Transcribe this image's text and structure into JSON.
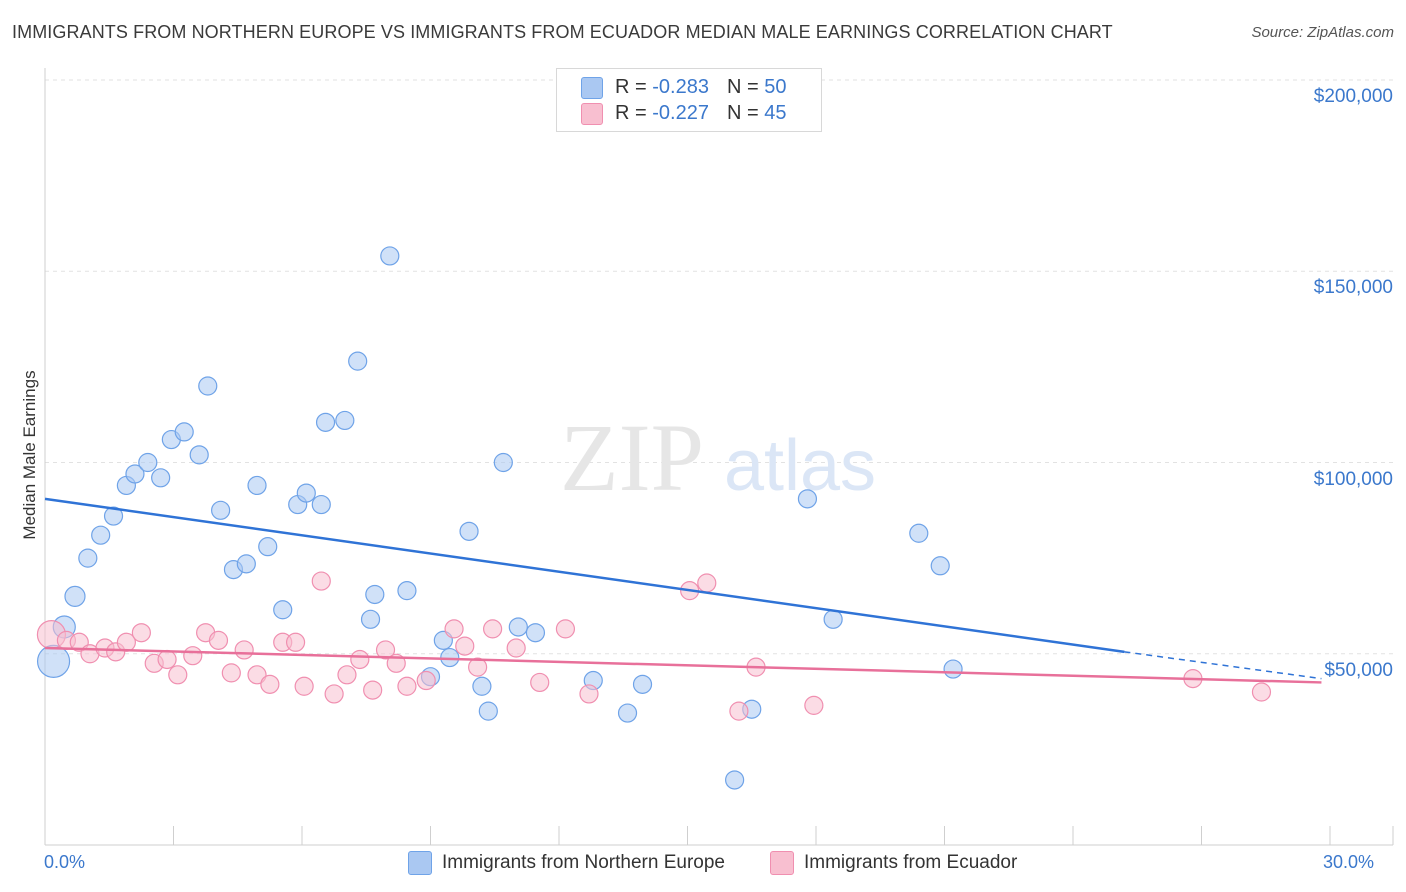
{
  "header": {
    "title": "IMMIGRANTS FROM NORTHERN EUROPE VS IMMIGRANTS FROM ECUADOR MEDIAN MALE EARNINGS CORRELATION CHART",
    "source": "Source: ZipAtlas.com"
  },
  "watermark": {
    "zip": "ZIP",
    "atlas": "atlas"
  },
  "legend": {
    "rows": [
      {
        "r_label": "R = ",
        "r_value": "-0.283",
        "n_label": "N = ",
        "n_value": "50",
        "color": "#aac8f2"
      },
      {
        "r_label": "R = ",
        "r_value": "-0.227",
        "n_label": "N = ",
        "n_value": "45",
        "color": "#f8bfd0"
      }
    ]
  },
  "bottom_legend": {
    "items": [
      {
        "label": "Immigrants from Northern Europe",
        "color": "#aac8f2"
      },
      {
        "label": "Immigrants from Ecuador",
        "color": "#f8bfd0"
      }
    ]
  },
  "chart_data": {
    "type": "scatter",
    "title": "IMMIGRANTS FROM NORTHERN EUROPE VS IMMIGRANTS FROM ECUADOR MEDIAN MALE EARNINGS CORRELATION CHART",
    "xlabel": "",
    "ylabel": "Median Male Earnings",
    "xlim": [
      0,
      30
    ],
    "ylim": [
      0,
      210000
    ],
    "x_tick_labels": [
      "0.0%",
      "30.0%"
    ],
    "y_ticks": [
      50000,
      100000,
      150000,
      200000
    ],
    "y_tick_labels": [
      "$50,000",
      "$100,000",
      "$150,000",
      "$200,000"
    ],
    "grid": true,
    "legend_position": "top-center",
    "series": [
      {
        "name": "Immigrants from Northern Europe",
        "color": "#6fa3e8",
        "fill": "#aac8f2",
        "trend": {
          "x": [
            0,
            25.2
          ],
          "y": [
            90500,
            50500
          ],
          "color": "#2f73d6",
          "dashed_extension_to_x": 29.8,
          "dashed_extension_y": 43500
        },
        "points": [
          {
            "x": 0.2,
            "y": 48000,
            "size": 16
          },
          {
            "x": 0.45,
            "y": 57000,
            "size": 11
          },
          {
            "x": 0.7,
            "y": 65000,
            "size": 10
          },
          {
            "x": 1.0,
            "y": 75000,
            "size": 9
          },
          {
            "x": 1.3,
            "y": 81000,
            "size": 9
          },
          {
            "x": 1.6,
            "y": 86000,
            "size": 9
          },
          {
            "x": 1.9,
            "y": 94000,
            "size": 9
          },
          {
            "x": 2.1,
            "y": 97000,
            "size": 9
          },
          {
            "x": 2.4,
            "y": 100000,
            "size": 9
          },
          {
            "x": 2.7,
            "y": 96000,
            "size": 9
          },
          {
            "x": 2.95,
            "y": 106000,
            "size": 9
          },
          {
            "x": 3.25,
            "y": 108000,
            "size": 9
          },
          {
            "x": 3.6,
            "y": 102000,
            "size": 9
          },
          {
            "x": 3.8,
            "y": 120000,
            "size": 9
          },
          {
            "x": 4.1,
            "y": 87500,
            "size": 9
          },
          {
            "x": 4.4,
            "y": 72000,
            "size": 9
          },
          {
            "x": 4.7,
            "y": 73500,
            "size": 9
          },
          {
            "x": 4.95,
            "y": 94000,
            "size": 9
          },
          {
            "x": 5.2,
            "y": 78000,
            "size": 9
          },
          {
            "x": 5.55,
            "y": 61500,
            "size": 9
          },
          {
            "x": 5.9,
            "y": 89000,
            "size": 9
          },
          {
            "x": 6.1,
            "y": 92000,
            "size": 9
          },
          {
            "x": 6.45,
            "y": 89000,
            "size": 9
          },
          {
            "x": 6.55,
            "y": 110500,
            "size": 9
          },
          {
            "x": 7.0,
            "y": 111000,
            "size": 9
          },
          {
            "x": 7.3,
            "y": 126500,
            "size": 9
          },
          {
            "x": 7.6,
            "y": 59000,
            "size": 9
          },
          {
            "x": 7.7,
            "y": 65500,
            "size": 9
          },
          {
            "x": 8.05,
            "y": 154000,
            "size": 9
          },
          {
            "x": 8.45,
            "y": 66500,
            "size": 9
          },
          {
            "x": 9.0,
            "y": 44000,
            "size": 9
          },
          {
            "x": 9.3,
            "y": 53500,
            "size": 9
          },
          {
            "x": 9.45,
            "y": 49000,
            "size": 9
          },
          {
            "x": 9.9,
            "y": 82000,
            "size": 9
          },
          {
            "x": 10.2,
            "y": 41500,
            "size": 9
          },
          {
            "x": 10.35,
            "y": 35000,
            "size": 9
          },
          {
            "x": 10.7,
            "y": 100000,
            "size": 9
          },
          {
            "x": 11.05,
            "y": 57000,
            "size": 9
          },
          {
            "x": 11.45,
            "y": 55500,
            "size": 9
          },
          {
            "x": 12.45,
            "y": 196000,
            "size": 9
          },
          {
            "x": 12.8,
            "y": 43000,
            "size": 9
          },
          {
            "x": 13.6,
            "y": 34500,
            "size": 9
          },
          {
            "x": 13.95,
            "y": 42000,
            "size": 9
          },
          {
            "x": 16.1,
            "y": 17000,
            "size": 9
          },
          {
            "x": 16.5,
            "y": 35500,
            "size": 9
          },
          {
            "x": 17.8,
            "y": 90500,
            "size": 9
          },
          {
            "x": 18.4,
            "y": 59000,
            "size": 9
          },
          {
            "x": 20.4,
            "y": 81500,
            "size": 9
          },
          {
            "x": 20.9,
            "y": 73000,
            "size": 9
          },
          {
            "x": 21.2,
            "y": 46000,
            "size": 9
          }
        ]
      },
      {
        "name": "Immigrants from Ecuador",
        "color": "#f08fb0",
        "fill": "#f8bfd0",
        "trend": {
          "x": [
            0,
            29.8
          ],
          "y": [
            51500,
            42500
          ],
          "color": "#e8709a"
        },
        "points": [
          {
            "x": 0.15,
            "y": 55000,
            "size": 14
          },
          {
            "x": 0.5,
            "y": 53500,
            "size": 9
          },
          {
            "x": 0.8,
            "y": 53000,
            "size": 9
          },
          {
            "x": 1.05,
            "y": 50000,
            "size": 9
          },
          {
            "x": 1.4,
            "y": 51500,
            "size": 9
          },
          {
            "x": 1.65,
            "y": 50500,
            "size": 9
          },
          {
            "x": 1.9,
            "y": 53000,
            "size": 9
          },
          {
            "x": 2.25,
            "y": 55500,
            "size": 9
          },
          {
            "x": 2.55,
            "y": 47500,
            "size": 9
          },
          {
            "x": 2.85,
            "y": 48500,
            "size": 9
          },
          {
            "x": 3.1,
            "y": 44500,
            "size": 9
          },
          {
            "x": 3.45,
            "y": 49500,
            "size": 9
          },
          {
            "x": 3.75,
            "y": 55500,
            "size": 9
          },
          {
            "x": 4.05,
            "y": 53500,
            "size": 9
          },
          {
            "x": 4.35,
            "y": 45000,
            "size": 9
          },
          {
            "x": 4.65,
            "y": 51000,
            "size": 9
          },
          {
            "x": 4.95,
            "y": 44500,
            "size": 9
          },
          {
            "x": 5.25,
            "y": 42000,
            "size": 9
          },
          {
            "x": 5.55,
            "y": 53000,
            "size": 9
          },
          {
            "x": 5.85,
            "y": 53000,
            "size": 9
          },
          {
            "x": 6.05,
            "y": 41500,
            "size": 9
          },
          {
            "x": 6.45,
            "y": 69000,
            "size": 9
          },
          {
            "x": 6.75,
            "y": 39500,
            "size": 9
          },
          {
            "x": 7.05,
            "y": 44500,
            "size": 9
          },
          {
            "x": 7.35,
            "y": 48500,
            "size": 9
          },
          {
            "x": 7.65,
            "y": 40500,
            "size": 9
          },
          {
            "x": 7.95,
            "y": 51000,
            "size": 9
          },
          {
            "x": 8.2,
            "y": 47500,
            "size": 9
          },
          {
            "x": 8.45,
            "y": 41500,
            "size": 9
          },
          {
            "x": 8.9,
            "y": 43000,
            "size": 9
          },
          {
            "x": 9.55,
            "y": 56500,
            "size": 9
          },
          {
            "x": 9.8,
            "y": 52000,
            "size": 9
          },
          {
            "x": 10.1,
            "y": 46500,
            "size": 9
          },
          {
            "x": 10.45,
            "y": 56500,
            "size": 9
          },
          {
            "x": 11.0,
            "y": 51500,
            "size": 9
          },
          {
            "x": 11.55,
            "y": 42500,
            "size": 9
          },
          {
            "x": 12.15,
            "y": 56500,
            "size": 9
          },
          {
            "x": 12.7,
            "y": 39500,
            "size": 9
          },
          {
            "x": 15.05,
            "y": 66500,
            "size": 9
          },
          {
            "x": 15.45,
            "y": 68500,
            "size": 9
          },
          {
            "x": 16.2,
            "y": 35000,
            "size": 9
          },
          {
            "x": 16.6,
            "y": 46500,
            "size": 9
          },
          {
            "x": 17.95,
            "y": 36500,
            "size": 9
          },
          {
            "x": 26.8,
            "y": 43500,
            "size": 9
          },
          {
            "x": 28.4,
            "y": 40000,
            "size": 9
          }
        ]
      }
    ]
  }
}
